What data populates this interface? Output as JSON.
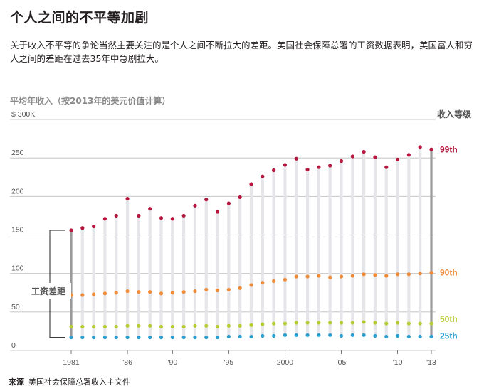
{
  "header": {
    "title": "个人之间的不平等加剧",
    "description": "关于收入不平等的争论当然主要关注的是个人之间不断拉大的差距。美国社会保障总署的工资数据表明，美国富人和穷人之间的差距在过去35年中急剧拉大。",
    "y_heading": "平均年收入（按2013年的美元价值计算）"
  },
  "footer": {
    "source_label": "来源",
    "source_text": "美国社会保障总署收入主文件"
  },
  "colors": {
    "p99": "#b5173f",
    "p90": "#ee8c3a",
    "p50": "#b7cc33",
    "p25": "#2a9fd0",
    "bar": "#e6e6ea",
    "gap_bar": "#9a9a9a",
    "grid": "#bdbdbd"
  },
  "chart_data": {
    "type": "scatter",
    "title": "",
    "y_unit_label": "$ 300K",
    "legend_title": "收入等级",
    "gap_label": "工资差距",
    "ylim": [
      0,
      300
    ],
    "yticks": [
      0,
      50,
      100,
      150,
      200,
      250
    ],
    "ytick_labels": [
      "0",
      "50",
      "100",
      "150",
      "200",
      "250"
    ],
    "xlim": [
      1981,
      2013
    ],
    "xticks": [
      1981,
      1986,
      1990,
      1995,
      2000,
      2005,
      2010,
      2013
    ],
    "xtick_labels": [
      "1981",
      "'86",
      "'90",
      "'95",
      "2000",
      "'05",
      "'10",
      "'13"
    ],
    "grid": true,
    "legend_placement": "right",
    "x": [
      1981,
      1982,
      1983,
      1984,
      1985,
      1986,
      1987,
      1988,
      1989,
      1990,
      1991,
      1992,
      1993,
      1994,
      1995,
      1996,
      1997,
      1998,
      1999,
      2000,
      2001,
      2002,
      2003,
      2004,
      2005,
      2006,
      2007,
      2008,
      2009,
      2010,
      2011,
      2012,
      2013
    ],
    "series": [
      {
        "name": "99th",
        "values": [
          156,
          159,
          161,
          171,
          175,
          197,
          175,
          184,
          172,
          171,
          175,
          188,
          196,
          180,
          191,
          199,
          216,
          226,
          234,
          241,
          249,
          235,
          238,
          240,
          246,
          252,
          258,
          251,
          238,
          248,
          254,
          264,
          261
        ]
      },
      {
        "name": "90th",
        "values": [
          72,
          72,
          73,
          74,
          75,
          77,
          76,
          76,
          74,
          75,
          76,
          77,
          79,
          78,
          79,
          81,
          85,
          88,
          90,
          92,
          96,
          96,
          97,
          95,
          96,
          97,
          99,
          98,
          97,
          99,
          99,
          100,
          101
        ]
      },
      {
        "name": "50th",
        "values": [
          31,
          31,
          31,
          31,
          31,
          32,
          32,
          32,
          31,
          31,
          31,
          32,
          32,
          31,
          32,
          32,
          33,
          34,
          35,
          35,
          36,
          36,
          36,
          36,
          36,
          36,
          37,
          36,
          35,
          36,
          35,
          35,
          35
        ]
      },
      {
        "name": "25th",
        "values": [
          17,
          17,
          17,
          17,
          17,
          17,
          17,
          17,
          17,
          17,
          17,
          17,
          17,
          17,
          18,
          18,
          18,
          19,
          19,
          20,
          20,
          20,
          20,
          20,
          19,
          20,
          20,
          19,
          18,
          19,
          18,
          18,
          18
        ]
      }
    ]
  }
}
